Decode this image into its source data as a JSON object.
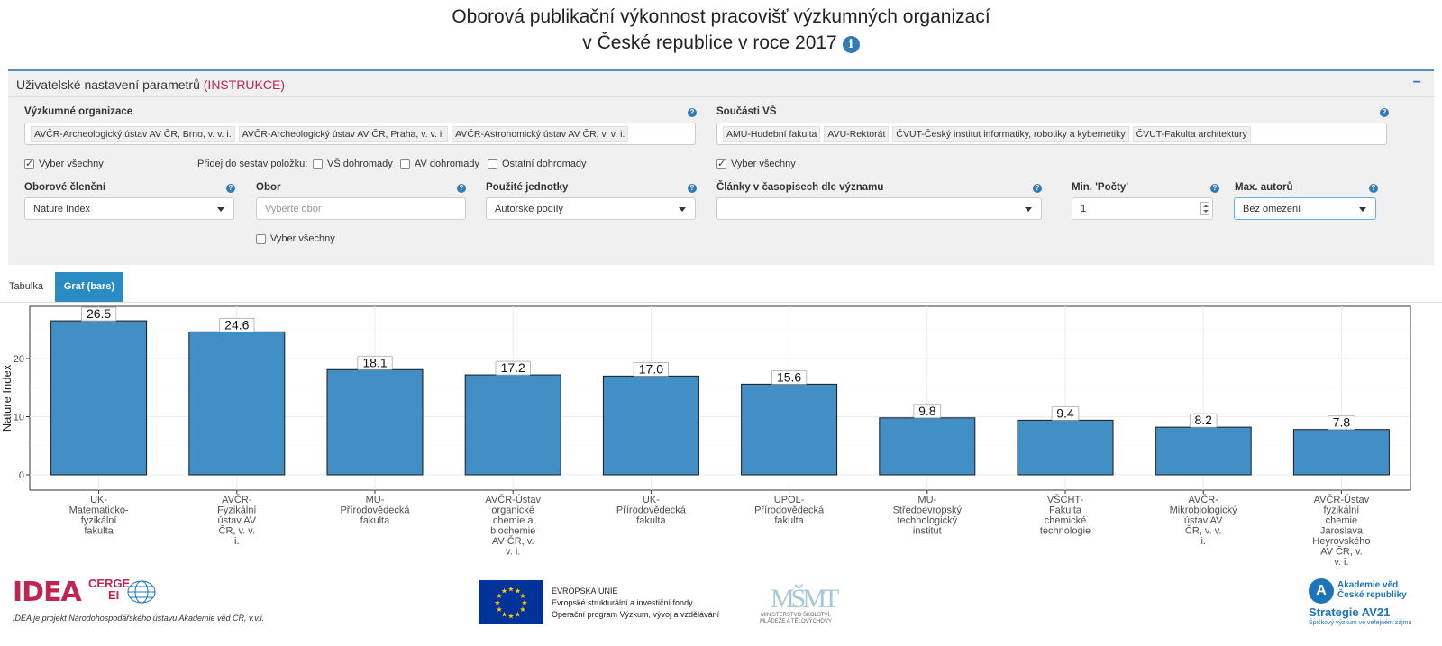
{
  "page": {
    "title_line1": "Oborová publikační výkonnost pracovišť výzkumných organizací",
    "title_line2": "v České republice v roce 2017"
  },
  "panel": {
    "heading": "Uživatelské nastavení parametrů",
    "instructions_link": "(INSTRUKCE)",
    "collapse_symbol": "−",
    "research_orgs": {
      "label": "Výzkumné organizace",
      "tags": [
        "AVČR-Archeologický ústav AV ČR, Brno, v. v. i.",
        "AVČR-Archeologický ústav AV ČR, Praha, v. v. i.",
        "AVČR-Astronomický ústav AV ČR, v. v. i."
      ],
      "select_all": "Vyber všechny",
      "add_label": "Přidej do sestav položku:",
      "add_vs": "VŠ dohromady",
      "add_av": "AV dohromady",
      "add_other": "Ostatní dohromady"
    },
    "university_parts": {
      "label": "Součásti VŠ",
      "tags": [
        "AMU-Hudební fakulta",
        "AVU-Rektorát",
        "ČVUT-Český institut informatiky, robotiky a kybernetiky",
        "ČVUT-Fakulta architektury"
      ],
      "select_all": "Vyber všechny"
    },
    "field_division": {
      "label": "Oborové členění",
      "value": "Nature Index"
    },
    "field": {
      "label": "Obor",
      "placeholder": "Vyberte obor",
      "select_all": "Vyber všechny"
    },
    "units": {
      "label": "Použité jednotky",
      "value": "Autorské podíly"
    },
    "articles": {
      "label": "Články v časopisech dle významu",
      "value": ""
    },
    "min_count": {
      "label": "Min. 'Počty'",
      "value": "1"
    },
    "max_authors": {
      "label": "Max. autorů",
      "value": "Bez omezení"
    }
  },
  "tabs": {
    "table": "Tabulka",
    "graph": "Graf (bars)"
  },
  "chart_data": {
    "type": "bar",
    "ylabel": "Nature Index",
    "ylim": [
      0,
      28
    ],
    "yticks": [
      0,
      10,
      20
    ],
    "grid": true,
    "categories": [
      [
        "UK-",
        "Matematicko-",
        "fyzikální",
        "fakulta"
      ],
      [
        "AVČR-",
        "Fyzikální",
        "ústav AV",
        "ČR, v. v.",
        "i."
      ],
      [
        "MU-",
        "Přírodovědecká",
        "fakulta"
      ],
      [
        "AVČR-Ústav",
        "organické",
        "chemie a",
        "biochemie",
        "AV ČR, v.",
        "v. i."
      ],
      [
        "UK-",
        "Přírodovědecká",
        "fakulta"
      ],
      [
        "UPOL-",
        "Přírodovědecká",
        "fakulta"
      ],
      [
        "MU-",
        "Středoevropský",
        "technologický",
        "institut"
      ],
      [
        "VŠCHT-",
        "Fakulta",
        "chemické",
        "technologie"
      ],
      [
        "AVČR-",
        "Mikrobiologický",
        "ústav AV",
        "ČR, v. v.",
        "i."
      ],
      [
        "AVČR-Ústav",
        "fyzikální",
        "chemie",
        "Jaroslava",
        "Heyrovského",
        "AV ČR, v.",
        "v. i."
      ]
    ],
    "values": [
      26.5,
      24.6,
      18.1,
      17.2,
      17.0,
      15.6,
      9.8,
      9.4,
      8.2,
      7.8
    ],
    "labels": [
      "26.5",
      "24.6",
      "18.1",
      "17.2",
      "17.0",
      "15.6",
      "9.8",
      "9.4",
      "8.2",
      "7.8"
    ],
    "bar_color": "#428fc6"
  },
  "footer": {
    "idea_logo": "IDEA",
    "cerge_line1": "CERGE",
    "cerge_line2": "EI",
    "idea_caption": "IDEA je projekt Národohospodářského ústavu Akademie věd ČR, v.v.i.",
    "eu_line1": "EVROPSKÁ UNIE",
    "eu_line2": "Evropské strukturální a investiční fondy",
    "eu_line3": "Operační program Výzkum, vývoj a vzdělávání",
    "msmt_line1": "MINISTERSTVO ŠKOLSTVÍ,",
    "msmt_line2": "MLÁDEŽE A TĚLOVÝCHOVY",
    "av_name_line1": "Akademie věd",
    "av_name_line2": "České republiky",
    "av_strategy": "Strategie AV21",
    "av_sub": "Špičkový výzkum ve veřejném zájmu"
  }
}
